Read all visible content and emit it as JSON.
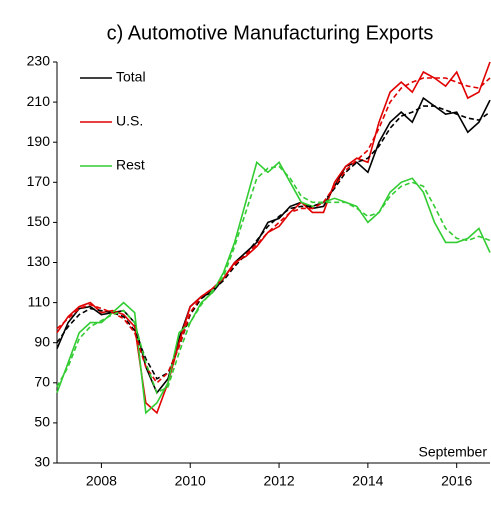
{
  "chart_data": {
    "type": "line",
    "title": "c) Automotive Manufacturing Exports",
    "annotation": "September",
    "x": [
      2007,
      2007.25,
      2007.5,
      2007.75,
      2008,
      2008.25,
      2008.5,
      2008.75,
      2009,
      2009.25,
      2009.5,
      2009.75,
      2010,
      2010.25,
      2010.5,
      2010.75,
      2011,
      2011.25,
      2011.5,
      2011.75,
      2012,
      2012.25,
      2012.5,
      2012.75,
      2013,
      2013.25,
      2013.5,
      2013.75,
      2014,
      2014.25,
      2014.5,
      2014.75,
      2015,
      2015.25,
      2015.5,
      2015.75,
      2016,
      2016.25,
      2016.5,
      2016.75
    ],
    "xlim": [
      2007,
      2016.75
    ],
    "xticks": [
      2008,
      2010,
      2012,
      2014,
      2016
    ],
    "ylim": [
      30,
      230
    ],
    "yticks": [
      30,
      50,
      70,
      90,
      110,
      130,
      150,
      170,
      190,
      210,
      230
    ],
    "legend": "top-left",
    "series": [
      {
        "name": "Total",
        "color": "#000000",
        "values": [
          87,
          100,
          107,
          108,
          104,
          105,
          106,
          100,
          78,
          65,
          72,
          92,
          108,
          113,
          115,
          122,
          130,
          135,
          140,
          150,
          152,
          158,
          160,
          157,
          158,
          168,
          178,
          180,
          175,
          190,
          200,
          205,
          200,
          212,
          208,
          204,
          205,
          195,
          200,
          211
        ]
      },
      {
        "name": "U.S.",
        "color": "#e00000",
        "values": [
          95,
          103,
          108,
          110,
          105,
          106,
          104,
          98,
          60,
          55,
          70,
          90,
          108,
          113,
          117,
          122,
          130,
          133,
          138,
          145,
          148,
          155,
          160,
          155,
          155,
          170,
          178,
          182,
          180,
          200,
          215,
          220,
          215,
          225,
          222,
          218,
          225,
          212,
          215,
          230
        ]
      },
      {
        "name": "Rest",
        "color": "#33cc33",
        "values": [
          65,
          80,
          95,
          100,
          100,
          105,
          110,
          105,
          55,
          60,
          70,
          95,
          100,
          110,
          115,
          125,
          140,
          160,
          180,
          175,
          180,
          170,
          160,
          158,
          160,
          162,
          160,
          158,
          150,
          155,
          165,
          170,
          172,
          165,
          150,
          140,
          140,
          142,
          147,
          135
        ]
      },
      {
        "color": "#000000",
        "dash": true,
        "values": [
          90,
          98,
          104,
          107,
          106,
          105,
          103,
          96,
          82,
          72,
          75,
          88,
          104,
          112,
          116,
          121,
          128,
          134,
          141,
          148,
          153,
          157,
          158,
          158,
          160,
          167,
          175,
          180,
          182,
          188,
          197,
          203,
          205,
          208,
          208,
          206,
          204,
          202,
          201,
          205
        ]
      },
      {
        "color": "#e00000",
        "dash": true,
        "values": [
          97,
          102,
          107,
          109,
          107,
          105,
          102,
          95,
          78,
          70,
          75,
          88,
          105,
          113,
          117,
          122,
          129,
          134,
          139,
          145,
          150,
          155,
          157,
          157,
          160,
          168,
          176,
          181,
          186,
          197,
          210,
          217,
          220,
          222,
          222,
          222,
          220,
          218,
          217,
          222
        ]
      },
      {
        "color": "#33cc33",
        "dash": true,
        "values": [
          68,
          78,
          92,
          98,
          101,
          104,
          106,
          100,
          80,
          65,
          68,
          85,
          100,
          109,
          116,
          123,
          138,
          155,
          172,
          177,
          178,
          172,
          163,
          160,
          160,
          160,
          160,
          157,
          153,
          155,
          163,
          168,
          170,
          168,
          158,
          147,
          142,
          141,
          143,
          141
        ]
      }
    ]
  }
}
